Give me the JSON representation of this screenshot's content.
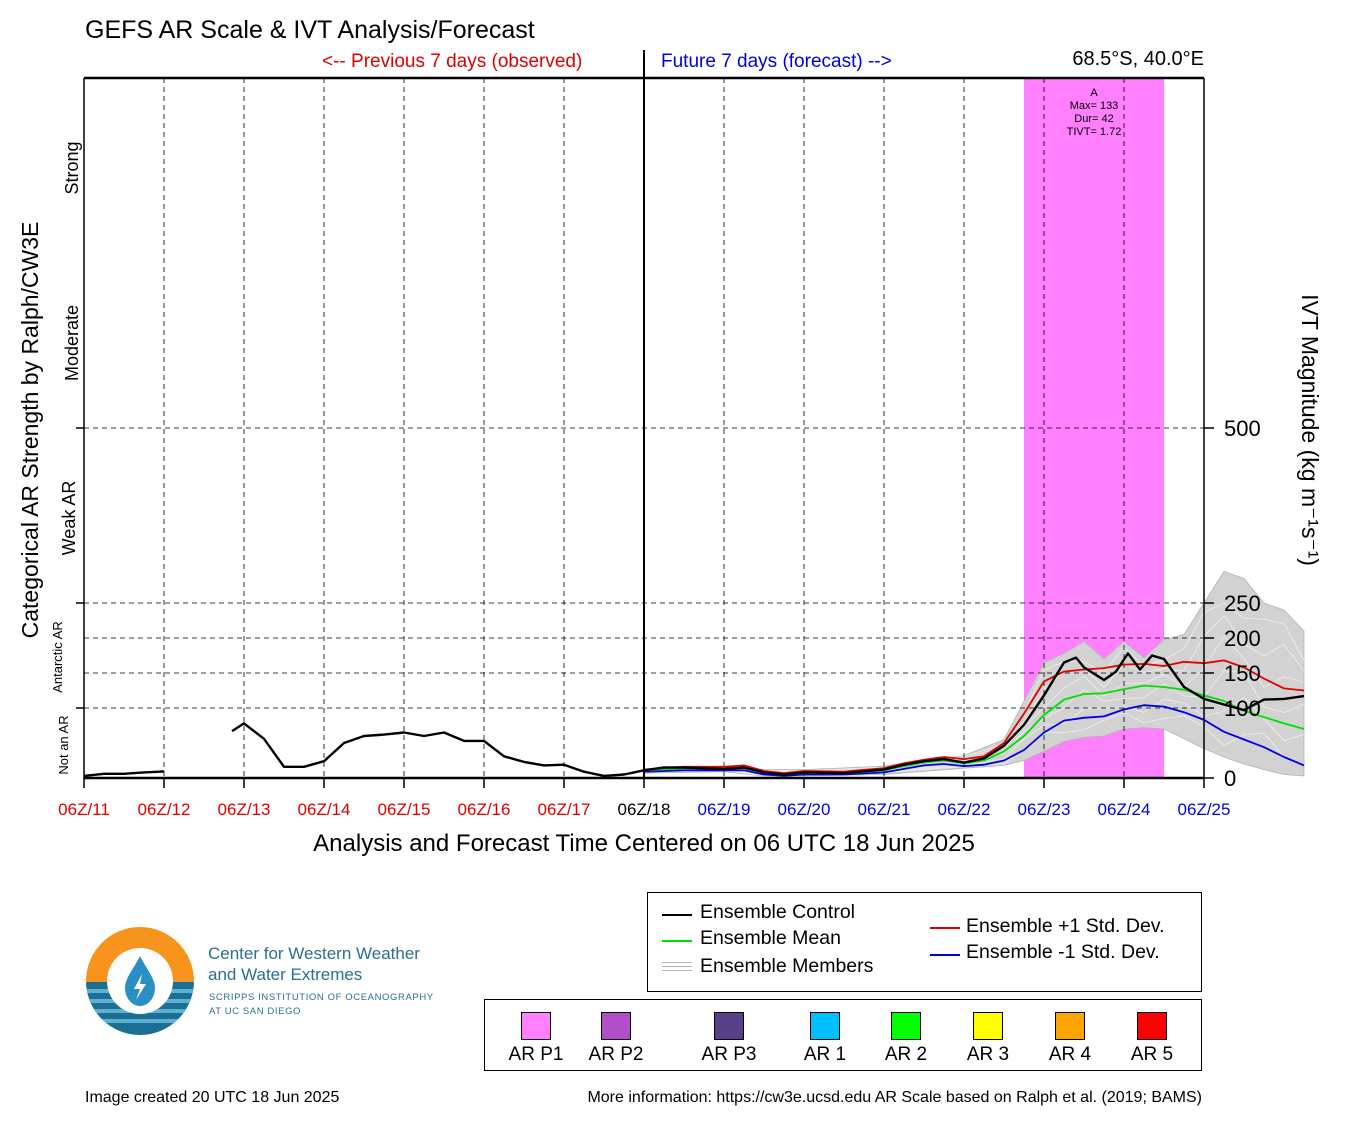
{
  "header": {
    "title": "GEFS AR Scale & IVT Analysis/Forecast",
    "previous_label": "<-- Previous 7 days (observed)",
    "future_label": "Future 7 days (forecast) -->",
    "location": "68.5°S, 40.0°E"
  },
  "colors": {
    "observed": "#e00000",
    "forecast": "#0000dd",
    "control": "#000000",
    "mean": "#00e000",
    "plus_std": "#e00000",
    "minus_std": "#0000dd",
    "members": "#b4b4b4",
    "ar_p1": "#ff80ff"
  },
  "chart_data": {
    "type": "line",
    "xlabel": "Analysis and Forecast Time Centered on 06 UTC 18 Jun 2025",
    "ylabel_left": "Categorical AR Strength by Ralph/CW3E",
    "ylabel_right": "IVT Magnitude (kg m⁻¹s⁻¹)",
    "x_ticks": [
      {
        "label": "06Z/11",
        "kind": "observed"
      },
      {
        "label": "06Z/12",
        "kind": "observed"
      },
      {
        "label": "06Z/13",
        "kind": "observed"
      },
      {
        "label": "06Z/14",
        "kind": "observed"
      },
      {
        "label": "06Z/15",
        "kind": "observed"
      },
      {
        "label": "06Z/16",
        "kind": "observed"
      },
      {
        "label": "06Z/17",
        "kind": "observed"
      },
      {
        "label": "06Z/18",
        "kind": "now"
      },
      {
        "label": "06Z/19",
        "kind": "forecast"
      },
      {
        "label": "06Z/20",
        "kind": "forecast"
      },
      {
        "label": "06Z/21",
        "kind": "forecast"
      },
      {
        "label": "06Z/22",
        "kind": "forecast"
      },
      {
        "label": "06Z/23",
        "kind": "forecast"
      },
      {
        "label": "06Z/24",
        "kind": "forecast"
      },
      {
        "label": "06Z/25",
        "kind": "forecast"
      }
    ],
    "x_range_days": [
      -7,
      7
    ],
    "y_ticks": [
      0,
      100,
      150,
      200,
      250,
      500
    ],
    "y_range": [
      0,
      1000
    ],
    "categories": [
      "Not an AR",
      "Antarctic AR",
      "Weak AR",
      "Moderate",
      "Strong"
    ],
    "ar_event": {
      "label": "A",
      "max": "Max= 133",
      "duration": "Dur= 42",
      "tivt": "TIVT= 1.72",
      "start_day": 4.75,
      "end_day": 6.5,
      "category": "AR P1"
    },
    "series": [
      {
        "name": "Ensemble Control",
        "color": "#000000",
        "segments": [
          [
            [
              -7,
              3
            ],
            [
              -6.75,
              6
            ],
            [
              -6.5,
              6
            ],
            [
              -6.25,
              8
            ],
            [
              -6,
              9.5
            ]
          ],
          [
            [
              -5.15,
              67
            ],
            [
              -5,
              78
            ],
            [
              -4.75,
              56
            ],
            [
              -4.5,
              16
            ],
            [
              -4.25,
              16
            ],
            [
              -4,
              24
            ],
            [
              -3.75,
              50
            ],
            [
              -3.5,
              60
            ],
            [
              -3.25,
              62
            ],
            [
              -3,
              65
            ],
            [
              -2.75,
              60
            ],
            [
              -2.5,
              65
            ],
            [
              -2.25,
              53
            ],
            [
              -2,
              53
            ],
            [
              -1.75,
              31
            ],
            [
              -1.5,
              23
            ],
            [
              -1.25,
              18
            ],
            [
              -1,
              19
            ],
            [
              -0.75,
              9
            ],
            [
              -0.5,
              3
            ],
            [
              -0.25,
              5
            ],
            [
              0,
              11
            ]
          ],
          [
            [
              0,
              11
            ],
            [
              0.25,
              15
            ],
            [
              0.5,
              15
            ],
            [
              1,
              13
            ],
            [
              1.25,
              15
            ],
            [
              1.5,
              8
            ],
            [
              1.75,
              5
            ],
            [
              2,
              8
            ],
            [
              2.5,
              7
            ],
            [
              3,
              12
            ],
            [
              3.25,
              19
            ],
            [
              3.5,
              24
            ],
            [
              3.75,
              27
            ],
            [
              4,
              22
            ],
            [
              4.25,
              28
            ],
            [
              4.5,
              46
            ],
            [
              4.75,
              76
            ],
            [
              5,
              118
            ],
            [
              5.25,
              165
            ],
            [
              5.4,
              172
            ],
            [
              5.5,
              158
            ],
            [
              5.75,
              140
            ],
            [
              5.9,
              152
            ],
            [
              6.05,
              178
            ],
            [
              6.2,
              155
            ],
            [
              6.35,
              175
            ],
            [
              6.5,
              170
            ],
            [
              6.75,
              130
            ],
            [
              7,
              113
            ],
            [
              7.25,
              105
            ],
            [
              7.5,
              97
            ],
            [
              7.75,
              112
            ],
            [
              8,
              113
            ],
            [
              8.25,
              117
            ]
          ]
        ]
      },
      {
        "name": "Ensemble Mean",
        "color": "#00e000",
        "segments": [
          [
            [
              0,
              11
            ],
            [
              0.5,
              14
            ],
            [
              1,
              13
            ],
            [
              1.25,
              14
            ],
            [
              1.5,
              8
            ],
            [
              1.75,
              5
            ],
            [
              2,
              7
            ],
            [
              2.5,
              7
            ],
            [
              3,
              11
            ],
            [
              3.25,
              17
            ],
            [
              3.5,
              22
            ],
            [
              3.75,
              25
            ],
            [
              4,
              21
            ],
            [
              4.25,
              25
            ],
            [
              4.5,
              38
            ],
            [
              4.75,
              60
            ],
            [
              5,
              90
            ],
            [
              5.25,
              112
            ],
            [
              5.5,
              120
            ],
            [
              5.75,
              121
            ],
            [
              6,
              127
            ],
            [
              6.25,
              132
            ],
            [
              6.5,
              130
            ],
            [
              6.75,
              126
            ],
            [
              7,
              118
            ],
            [
              7.25,
              110
            ],
            [
              7.5,
              96
            ],
            [
              7.75,
              87
            ],
            [
              8,
              78
            ],
            [
              8.25,
              70
            ]
          ]
        ]
      },
      {
        "name": "Ensemble +1 Std. Dev.",
        "color": "#e00000",
        "segments": [
          [
            [
              0,
              12
            ],
            [
              0.5,
              16
            ],
            [
              1,
              16
            ],
            [
              1.25,
              18
            ],
            [
              1.5,
              10
            ],
            [
              1.75,
              7
            ],
            [
              2,
              10
            ],
            [
              2.5,
              9
            ],
            [
              3,
              14
            ],
            [
              3.25,
              21
            ],
            [
              3.5,
              26
            ],
            [
              3.75,
              30
            ],
            [
              4,
              27
            ],
            [
              4.25,
              31
            ],
            [
              4.5,
              50
            ],
            [
              4.75,
              92
            ],
            [
              5,
              138
            ],
            [
              5.25,
              152
            ],
            [
              5.5,
              155
            ],
            [
              5.75,
              157
            ],
            [
              6,
              162
            ],
            [
              6.25,
              163
            ],
            [
              6.5,
              160
            ],
            [
              6.75,
              166
            ],
            [
              7,
              164
            ],
            [
              7.25,
              168
            ],
            [
              7.5,
              158
            ],
            [
              7.75,
              142
            ],
            [
              8,
              128
            ],
            [
              8.25,
              125
            ]
          ]
        ]
      },
      {
        "name": "Ensemble -1 Std. Dev.",
        "color": "#0000dd",
        "segments": [
          [
            [
              0,
              9
            ],
            [
              0.5,
              11
            ],
            [
              1,
              11
            ],
            [
              1.25,
              11
            ],
            [
              1.5,
              5
            ],
            [
              1.75,
              3
            ],
            [
              2,
              5
            ],
            [
              2.5,
              5
            ],
            [
              3,
              8
            ],
            [
              3.25,
              13
            ],
            [
              3.5,
              18
            ],
            [
              3.75,
              20
            ],
            [
              4,
              17
            ],
            [
              4.25,
              19
            ],
            [
              4.5,
              25
            ],
            [
              4.75,
              40
            ],
            [
              5,
              65
            ],
            [
              5.25,
              82
            ],
            [
              5.5,
              86
            ],
            [
              5.75,
              88
            ],
            [
              6,
              98
            ],
            [
              6.25,
              104
            ],
            [
              6.5,
              102
            ],
            [
              6.75,
              94
            ],
            [
              7,
              83
            ],
            [
              7.25,
              66
            ],
            [
              7.5,
              55
            ],
            [
              7.75,
              44
            ],
            [
              8,
              30
            ],
            [
              8.25,
              18
            ]
          ]
        ]
      }
    ],
    "members_spread": {
      "name": "Ensemble Members",
      "upper": [
        [
          0,
          13
        ],
        [
          1,
          17
        ],
        [
          1.5,
          12
        ],
        [
          2,
          12
        ],
        [
          3,
          17
        ],
        [
          4,
          32
        ],
        [
          4.5,
          55
        ],
        [
          4.75,
          110
        ],
        [
          5,
          165
        ],
        [
          5.25,
          178
        ],
        [
          5.5,
          195
        ],
        [
          5.75,
          170
        ],
        [
          6,
          195
        ],
        [
          6.25,
          172
        ],
        [
          6.5,
          198
        ],
        [
          6.75,
          205
        ],
        [
          7,
          250
        ],
        [
          7.25,
          295
        ],
        [
          7.5,
          285
        ],
        [
          7.75,
          250
        ],
        [
          8,
          240
        ],
        [
          8.25,
          210
        ]
      ],
      "lower": [
        [
          0,
          7
        ],
        [
          1,
          9
        ],
        [
          1.5,
          3
        ],
        [
          2,
          3
        ],
        [
          3,
          5
        ],
        [
          4,
          14
        ],
        [
          4.5,
          18
        ],
        [
          4.75,
          25
        ],
        [
          5,
          38
        ],
        [
          5.25,
          52
        ],
        [
          5.5,
          58
        ],
        [
          5.75,
          60
        ],
        [
          6,
          70
        ],
        [
          6.25,
          72
        ],
        [
          6.5,
          70
        ],
        [
          6.75,
          56
        ],
        [
          7,
          42
        ],
        [
          7.25,
          30
        ],
        [
          7.5,
          20
        ],
        [
          7.75,
          12
        ],
        [
          8,
          5
        ],
        [
          8.25,
          3
        ]
      ]
    }
  },
  "legend": {
    "control": "Ensemble Control",
    "mean": "Ensemble Mean",
    "members": "Ensemble Members",
    "plus_std": "Ensemble +1 Std. Dev.",
    "minus_std": "Ensemble -1 Std. Dev."
  },
  "ar_scale": [
    {
      "label": "AR P1",
      "color": "#ff80ff"
    },
    {
      "label": "AR P2",
      "color": "#b04fc8"
    },
    {
      "label": "AR P3",
      "color": "#5a3f8a"
    },
    {
      "label": "AR 1",
      "color": "#00bfff"
    },
    {
      "label": "AR 2",
      "color": "#00ff00"
    },
    {
      "label": "AR 3",
      "color": "#ffff00"
    },
    {
      "label": "AR 4",
      "color": "#ffa500"
    },
    {
      "label": "AR 5",
      "color": "#ff0000"
    }
  ],
  "logo": {
    "line1": "Center for Western Weather",
    "line2": "and Water Extremes",
    "line3": "SCRIPPS INSTITUTION OF OCEANOGRAPHY",
    "line4": "AT UC SAN DIEGO"
  },
  "footer": {
    "created": "Image created 20 UTC 18 Jun 2025",
    "info": "More information: https://cw3e.ucsd.edu AR Scale based on Ralph et al. (2019; BAMS)"
  }
}
